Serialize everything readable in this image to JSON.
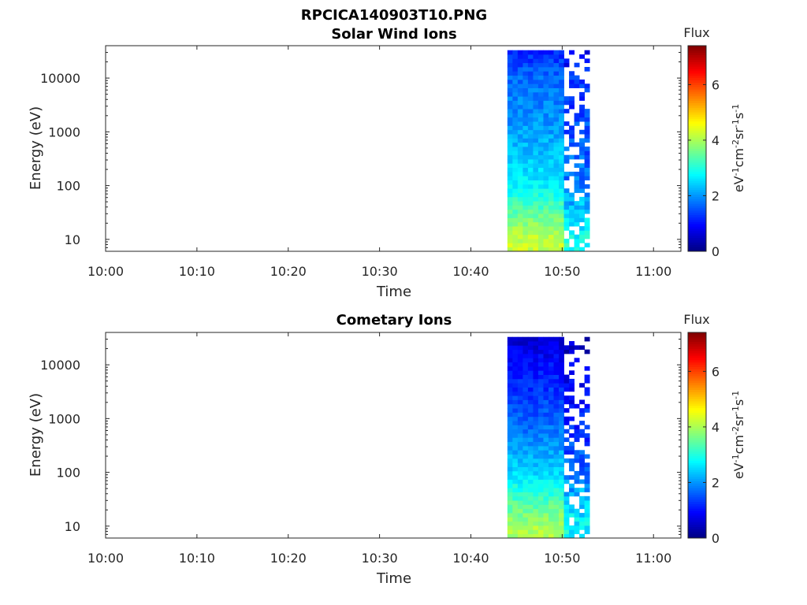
{
  "figure": {
    "title": "RPCICA140903T10.PNG"
  },
  "colors": {
    "axis": "#262626",
    "background": "#ffffff",
    "colormap": "jet"
  },
  "chart_data": [
    {
      "type": "heatmap",
      "title": "Solar Wind Ions",
      "xlabel": "Time",
      "ylabel": "Energy (eV)",
      "xticks": [
        "10:00",
        "10:10",
        "10:20",
        "10:30",
        "10:40",
        "10:50",
        "11:00"
      ],
      "xlim_minutes_after_10": [
        0,
        63
      ],
      "yscale": "log",
      "ylim": [
        6,
        40000
      ],
      "yticks": [
        "10",
        "100",
        "1000",
        "10000"
      ],
      "colorbar": {
        "title": "Flux",
        "label": "eV-1cm-2sr-1s-1",
        "range": [
          0,
          7.4
        ],
        "ticks": [
          "0",
          "2",
          "4",
          "6"
        ]
      },
      "data_time_range_minutes": [
        44,
        53
      ],
      "flux_profile_by_energy": [
        {
          "energy": 10,
          "flux": 4.2
        },
        {
          "energy": 30,
          "flux": 3.5
        },
        {
          "energy": 100,
          "flux": 2.7
        },
        {
          "energy": 1000,
          "flux": 2.1
        },
        {
          "energy": 10000,
          "flux": 1.7
        },
        {
          "energy": 30000,
          "flux": 1.2
        }
      ]
    },
    {
      "type": "heatmap",
      "title": "Cometary Ions",
      "xlabel": "Time",
      "ylabel": "Energy (eV)",
      "xticks": [
        "10:00",
        "10:10",
        "10:20",
        "10:30",
        "10:40",
        "10:50",
        "11:00"
      ],
      "xlim_minutes_after_10": [
        0,
        63
      ],
      "yscale": "log",
      "ylim": [
        6,
        40000
      ],
      "yticks": [
        "10",
        "100",
        "1000",
        "10000"
      ],
      "colorbar": {
        "title": "Flux",
        "label": "eV-1cm-2sr-1s-1",
        "range": [
          0,
          7.4
        ],
        "ticks": [
          "0",
          "2",
          "4",
          "6"
        ]
      },
      "data_time_range_minutes": [
        44,
        53
      ],
      "flux_profile_by_energy": [
        {
          "energy": 10,
          "flux": 4.0
        },
        {
          "energy": 30,
          "flux": 3.3
        },
        {
          "energy": 100,
          "flux": 2.5
        },
        {
          "energy": 1000,
          "flux": 1.6
        },
        {
          "energy": 10000,
          "flux": 1.0
        },
        {
          "energy": 30000,
          "flux": 0.6
        }
      ]
    }
  ]
}
